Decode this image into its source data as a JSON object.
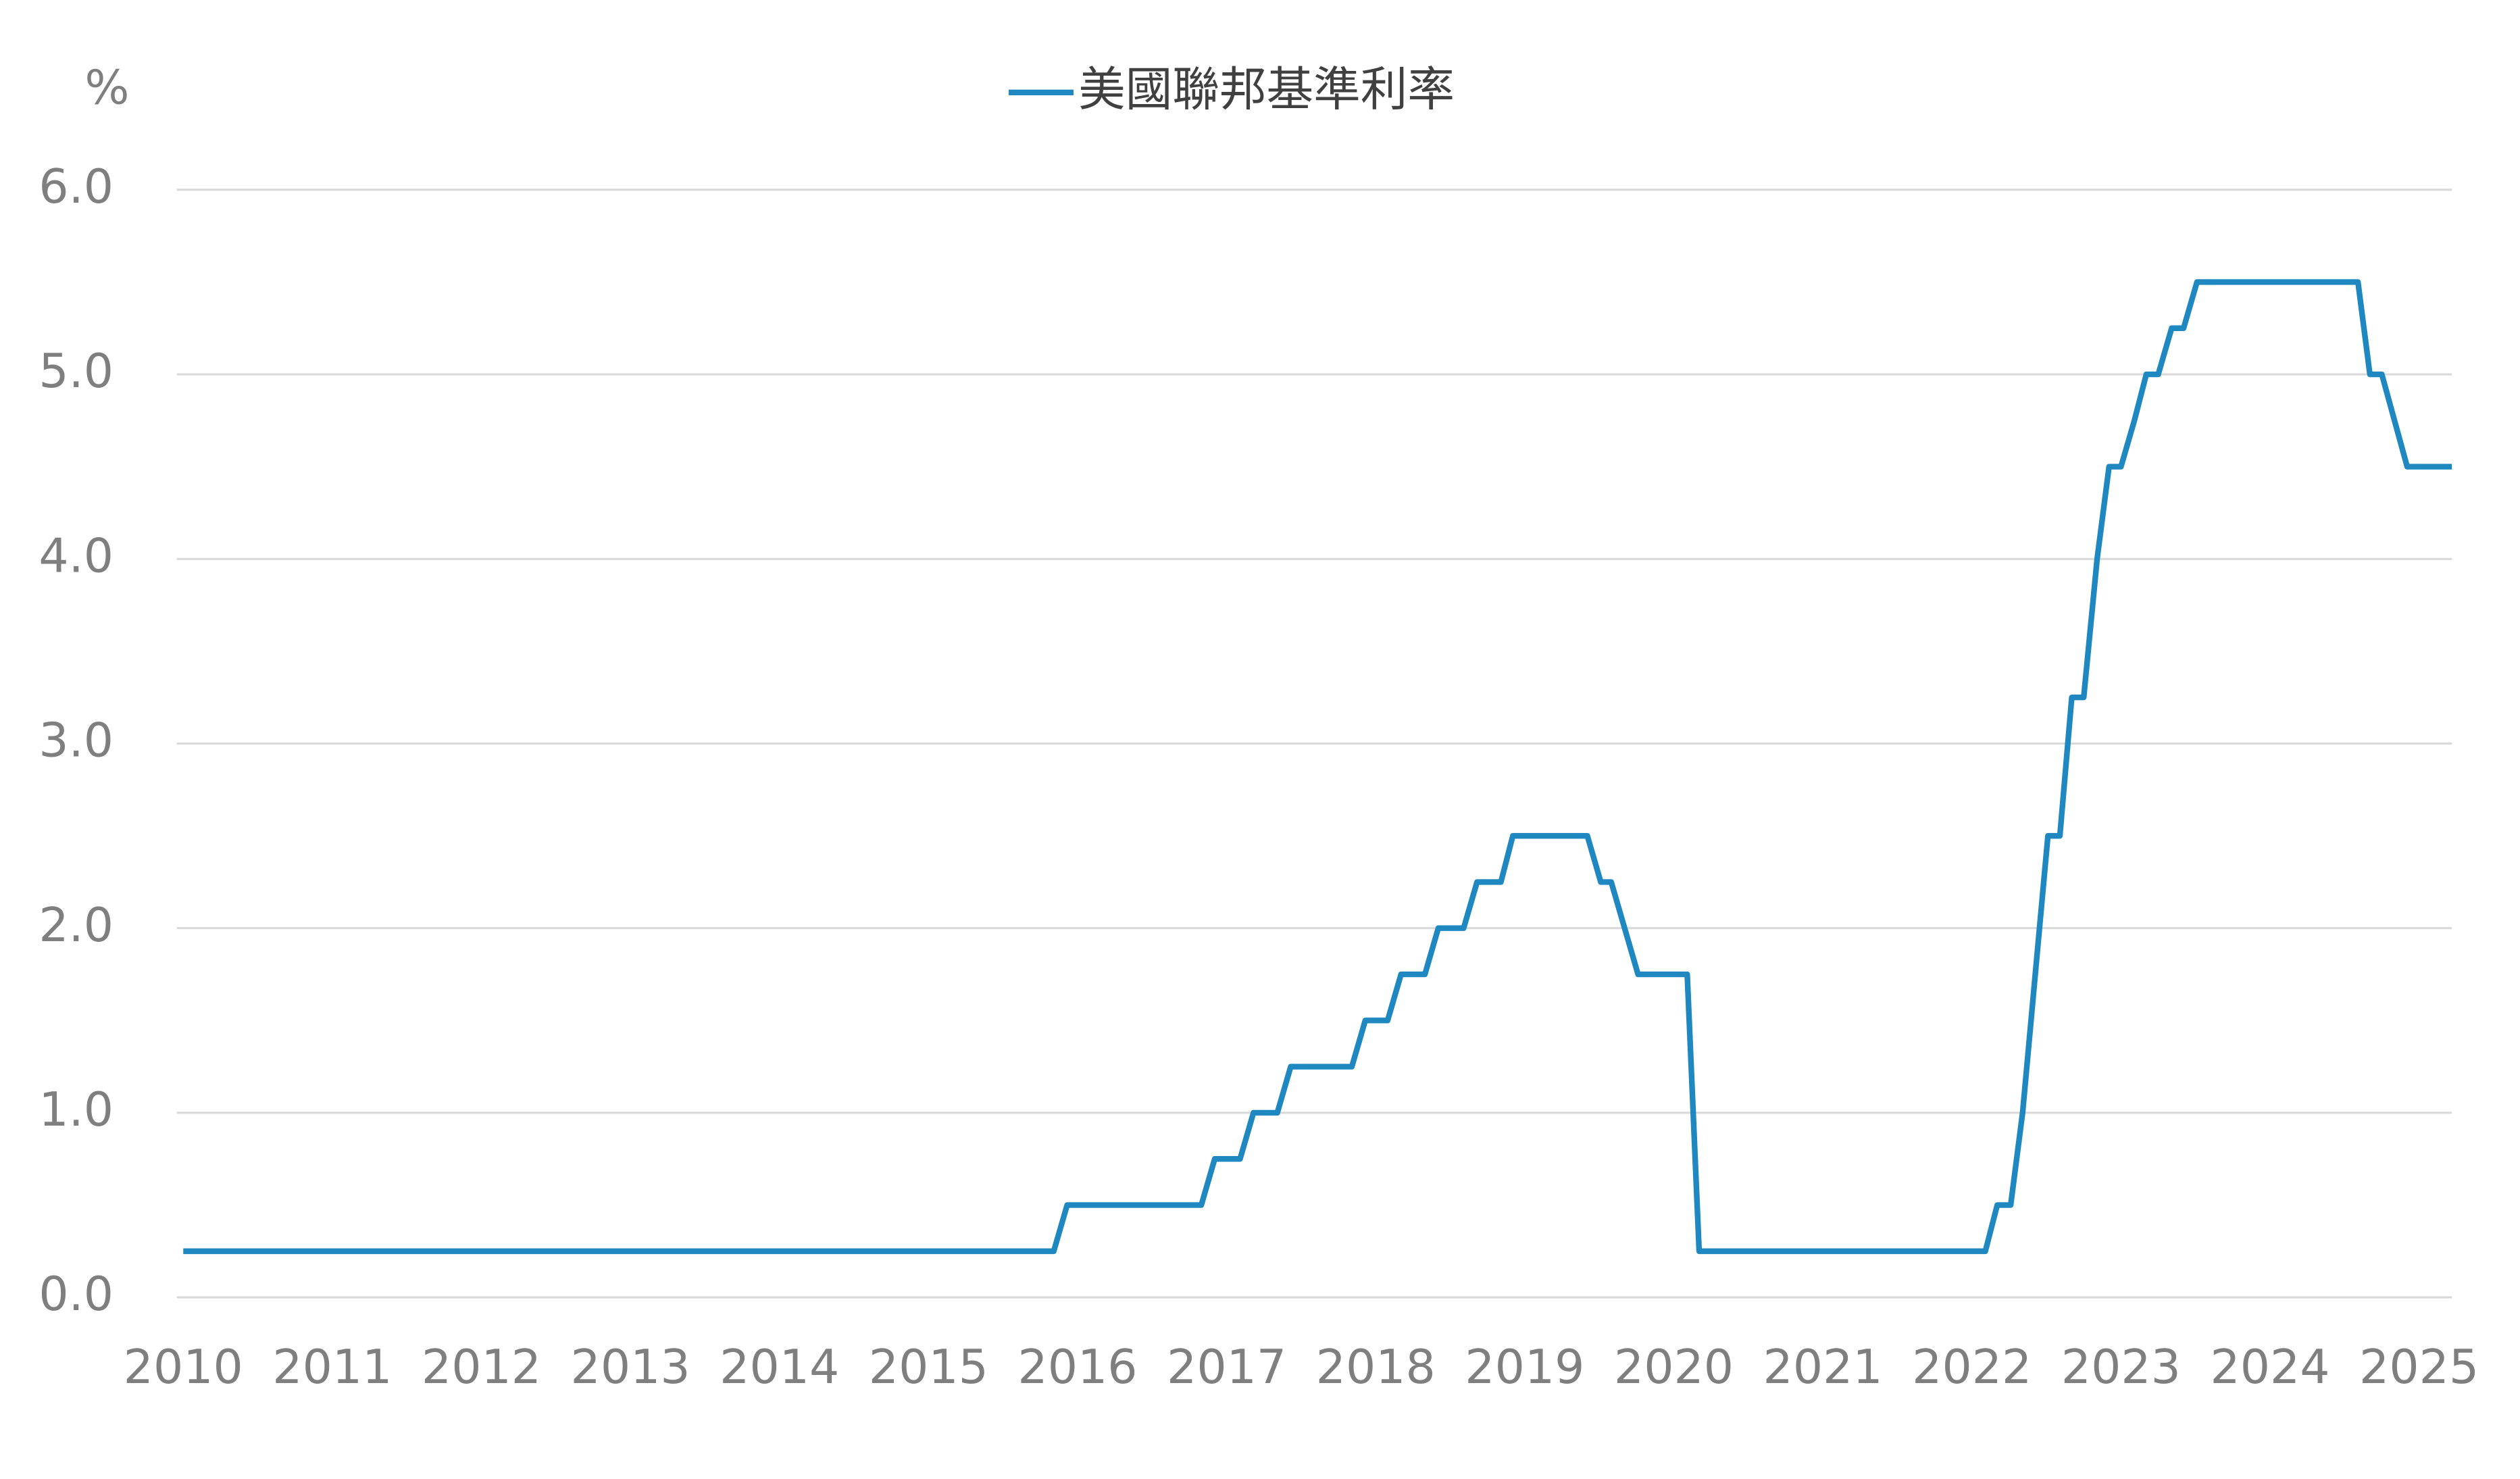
{
  "chart_data": {
    "type": "line",
    "y_label": "%",
    "legend": "top",
    "x": [
      2010,
      2015.84,
      2015.93,
      2016.83,
      2016.92,
      2017.09,
      2017.18,
      2017.34,
      2017.43,
      2017.84,
      2017.93,
      2018.08,
      2018.17,
      2018.33,
      2018.42,
      2018.59,
      2018.68,
      2018.84,
      2018.92,
      2019.42,
      2019.51,
      2019.58,
      2019.76,
      2020.09,
      2020.17,
      2022.09,
      2022.17,
      2022.26,
      2022.34,
      2022.51,
      2022.59,
      2022.67,
      2022.75,
      2022.84,
      2022.92,
      2023.0,
      2023.09,
      2023.17,
      2023.25,
      2023.34,
      2023.42,
      2023.51,
      2024.59,
      2024.67,
      2024.75,
      2024.92,
      2025.22
    ],
    "series": [
      {
        "name": "美國聯邦基準利率",
        "color": "#1f88c0",
        "values": [
          0.25,
          0.25,
          0.5,
          0.5,
          0.75,
          0.75,
          1.0,
          1.0,
          1.25,
          1.25,
          1.5,
          1.5,
          1.75,
          1.75,
          2.0,
          2.0,
          2.25,
          2.25,
          2.5,
          2.5,
          2.25,
          2.25,
          1.75,
          1.75,
          0.25,
          0.25,
          0.5,
          0.5,
          1.0,
          2.5,
          2.5,
          3.25,
          3.25,
          4.0,
          4.5,
          4.5,
          4.75,
          5.0,
          5.0,
          5.25,
          5.25,
          5.5,
          5.5,
          5.0,
          5.0,
          4.5,
          4.5
        ]
      }
    ],
    "xlim": [
      2010,
      2025.22
    ],
    "xticks": [
      2010,
      2011,
      2012,
      2013,
      2014,
      2015,
      2016,
      2017,
      2018,
      2019,
      2020,
      2021,
      2022,
      2023,
      2024,
      2025
    ],
    "ylim": [
      0,
      6
    ],
    "yticks": [
      {
        "value": 0,
        "label": "0.0"
      },
      {
        "value": 1,
        "label": "1.0"
      },
      {
        "value": 2,
        "label": "2.0"
      },
      {
        "value": 3,
        "label": "3.0"
      },
      {
        "value": 4,
        "label": "4.0"
      },
      {
        "value": 5,
        "label": "5.0"
      },
      {
        "value": 6,
        "label": "6.0"
      }
    ],
    "grid": true
  }
}
